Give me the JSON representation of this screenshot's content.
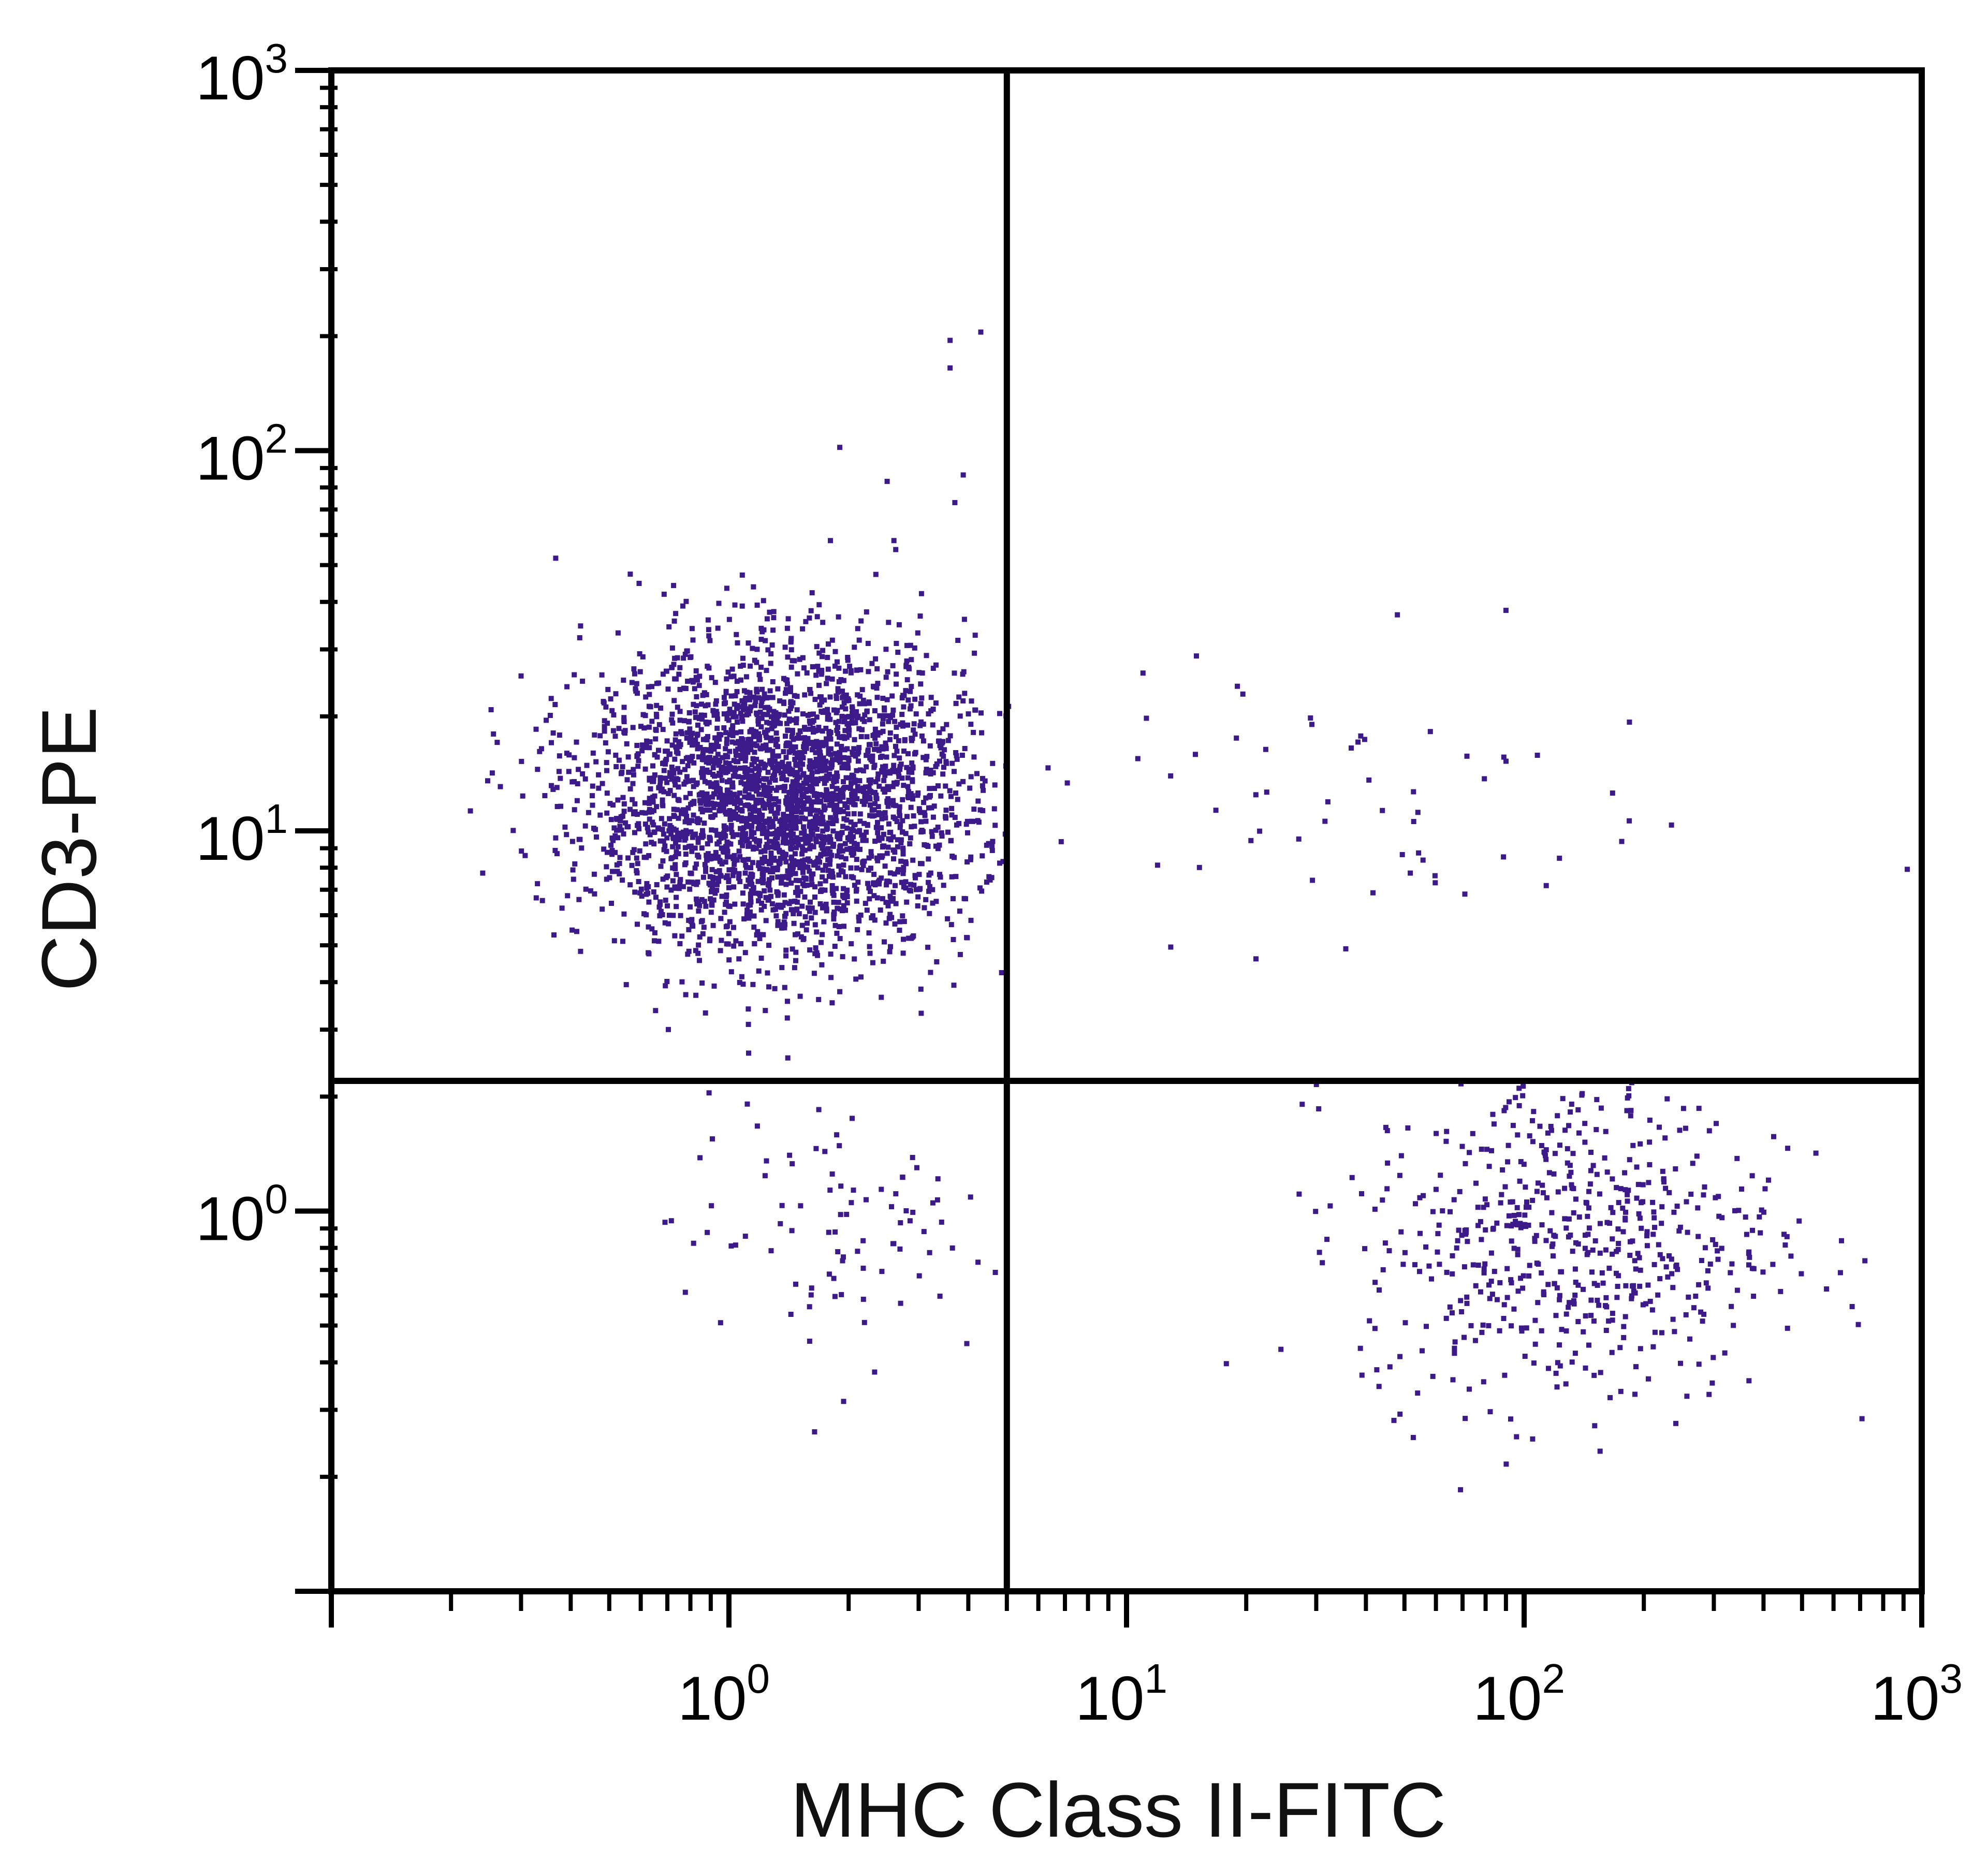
{
  "chart_data": {
    "type": "scatter",
    "title": "",
    "xlabel": "MHC Class II-FITC",
    "ylabel": "CD3-PE",
    "x_scale": "log",
    "y_scale": "log",
    "xlim": [
      0.1,
      1000
    ],
    "ylim": [
      0.1,
      1000
    ],
    "x_ticks": [
      {
        "value": 1,
        "base": "10",
        "exp": "0"
      },
      {
        "value": 10,
        "base": "10",
        "exp": "1"
      },
      {
        "value": 100,
        "base": "10",
        "exp": "2"
      },
      {
        "value": 1000,
        "base": "10",
        "exp": "3"
      }
    ],
    "y_ticks": [
      {
        "value": 1,
        "base": "10",
        "exp": "0"
      },
      {
        "value": 10,
        "base": "10",
        "exp": "1"
      },
      {
        "value": 100,
        "base": "10",
        "exp": "2"
      },
      {
        "value": 1000,
        "base": "10",
        "exp": "3"
      }
    ],
    "quadrant_gates": {
      "x": 5.0,
      "y": 2.2
    },
    "grid": false,
    "legend": "none",
    "point_color": "#3d1a8a",
    "populations": [
      {
        "quadrant": "upper-left",
        "x_center": 1.35,
        "y_center": 12.0,
        "approx_events": 3200
      },
      {
        "quadrant": "lower-right",
        "x_center": 130,
        "y_center": 0.85,
        "approx_events": 600
      },
      {
        "quadrant": "lower-left",
        "x_center": 1.8,
        "y_center": 0.9,
        "approx_events": 90
      },
      {
        "quadrant": "upper-right",
        "x_center": 30,
        "y_center": 12,
        "approx_events": 60
      }
    ],
    "outlier_points": [
      {
        "x": 3.6,
        "y": 195
      },
      {
        "x": 4.3,
        "y": 205
      },
      {
        "x": 3.6,
        "y": 165
      },
      {
        "x": 1.9,
        "y": 102
      },
      {
        "x": 2.5,
        "y": 83
      },
      {
        "x": 3.7,
        "y": 73
      },
      {
        "x": 1.8,
        "y": 58
      },
      {
        "x": 2.6,
        "y": 58
      },
      {
        "x": 48,
        "y": 37
      },
      {
        "x": 90,
        "y": 38
      },
      {
        "x": 11,
        "y": 26
      },
      {
        "x": 19,
        "y": 24
      }
    ]
  }
}
